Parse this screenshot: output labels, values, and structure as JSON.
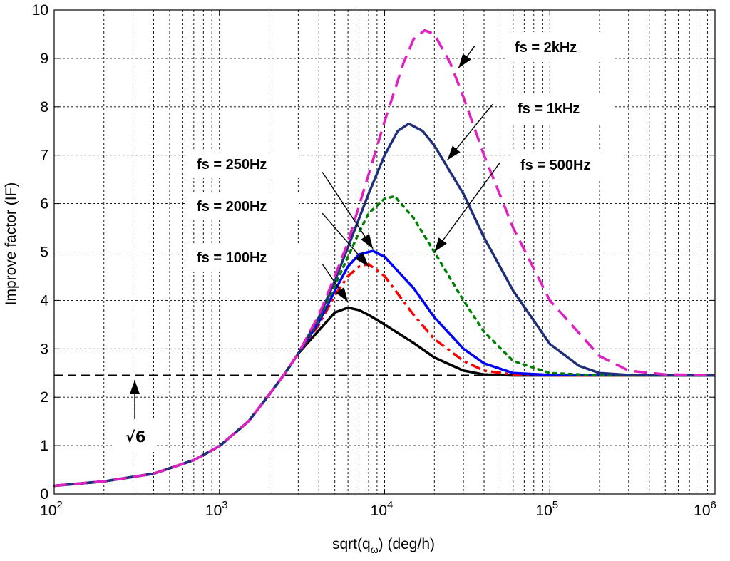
{
  "chart_data": {
    "type": "line",
    "x_scale": "log",
    "xlabel_main": "sqrt(q",
    "xlabel_sub": "ω",
    "xlabel_tail": ") (deg/h)",
    "ylabel": "Improve factor (IF)",
    "xlim": [
      100,
      1000000
    ],
    "ylim": [
      0,
      10
    ],
    "grid": true,
    "x_ticks": [
      {
        "value": 100,
        "base": "10",
        "exp": "2"
      },
      {
        "value": 1000,
        "base": "10",
        "exp": "3"
      },
      {
        "value": 10000,
        "base": "10",
        "exp": "4"
      },
      {
        "value": 100000,
        "base": "10",
        "exp": "5"
      },
      {
        "value": 1000000,
        "base": "10",
        "exp": "6"
      }
    ],
    "y_ticks": [
      0,
      1,
      2,
      3,
      4,
      5,
      6,
      7,
      8,
      9,
      10
    ],
    "reference_line": {
      "value": 2.449,
      "style": "dashed",
      "color": "#000000"
    },
    "sqrt6_annotation": {
      "label": "√6",
      "arrow_x": 316
    },
    "series": [
      {
        "name": "fs = 100Hz",
        "color": "#000000",
        "dash": "solid",
        "points": [
          [
            100,
            0.17
          ],
          [
            200,
            0.26
          ],
          [
            400,
            0.42
          ],
          [
            700,
            0.7
          ],
          [
            1000,
            0.99
          ],
          [
            1500,
            1.5
          ],
          [
            2000,
            2.05
          ],
          [
            2500,
            2.5
          ],
          [
            3000,
            2.9
          ],
          [
            4000,
            3.38
          ],
          [
            5000,
            3.75
          ],
          [
            6000,
            3.85
          ],
          [
            7000,
            3.8
          ],
          [
            8000,
            3.7
          ],
          [
            10000,
            3.5
          ],
          [
            15000,
            3.12
          ],
          [
            20000,
            2.82
          ],
          [
            30000,
            2.55
          ],
          [
            40000,
            2.47
          ],
          [
            60000,
            2.45
          ],
          [
            100000,
            2.45
          ],
          [
            1000000,
            2.45
          ]
        ]
      },
      {
        "name": "fs = 200Hz",
        "color": "#ff0000",
        "dash": "dashdot",
        "points": [
          [
            100,
            0.17
          ],
          [
            200,
            0.26
          ],
          [
            400,
            0.42
          ],
          [
            700,
            0.7
          ],
          [
            1000,
            0.99
          ],
          [
            1500,
            1.5
          ],
          [
            2000,
            2.05
          ],
          [
            2500,
            2.5
          ],
          [
            3000,
            2.9
          ],
          [
            4000,
            3.5
          ],
          [
            5000,
            4.1
          ],
          [
            6000,
            4.5
          ],
          [
            7000,
            4.7
          ],
          [
            8000,
            4.75
          ],
          [
            10000,
            4.5
          ],
          [
            15000,
            3.7
          ],
          [
            20000,
            3.2
          ],
          [
            30000,
            2.75
          ],
          [
            40000,
            2.55
          ],
          [
            60000,
            2.47
          ],
          [
            100000,
            2.45
          ],
          [
            1000000,
            2.45
          ]
        ]
      },
      {
        "name": "fs = 250Hz",
        "color": "#0000ff",
        "dash": "solid",
        "points": [
          [
            100,
            0.17
          ],
          [
            200,
            0.26
          ],
          [
            400,
            0.42
          ],
          [
            700,
            0.7
          ],
          [
            1000,
            0.99
          ],
          [
            1500,
            1.5
          ],
          [
            2000,
            2.05
          ],
          [
            2500,
            2.5
          ],
          [
            3000,
            2.9
          ],
          [
            4000,
            3.55
          ],
          [
            5000,
            4.2
          ],
          [
            6000,
            4.7
          ],
          [
            7000,
            4.95
          ],
          [
            8500,
            5.02
          ],
          [
            10000,
            4.9
          ],
          [
            15000,
            4.25
          ],
          [
            20000,
            3.65
          ],
          [
            30000,
            3.0
          ],
          [
            40000,
            2.7
          ],
          [
            60000,
            2.5
          ],
          [
            100000,
            2.46
          ],
          [
            1000000,
            2.45
          ]
        ]
      },
      {
        "name": "fs = 500Hz",
        "color": "#008000",
        "dash": "dotted",
        "points": [
          [
            100,
            0.17
          ],
          [
            200,
            0.26
          ],
          [
            400,
            0.42
          ],
          [
            700,
            0.7
          ],
          [
            1000,
            0.99
          ],
          [
            1500,
            1.5
          ],
          [
            2000,
            2.05
          ],
          [
            2500,
            2.5
          ],
          [
            3000,
            2.9
          ],
          [
            4000,
            3.6
          ],
          [
            5000,
            4.3
          ],
          [
            6000,
            4.9
          ],
          [
            7000,
            5.4
          ],
          [
            8000,
            5.8
          ],
          [
            10000,
            6.1
          ],
          [
            11500,
            6.15
          ],
          [
            15000,
            5.7
          ],
          [
            20000,
            5.0
          ],
          [
            30000,
            4.0
          ],
          [
            40000,
            3.35
          ],
          [
            60000,
            2.75
          ],
          [
            100000,
            2.5
          ],
          [
            200000,
            2.45
          ],
          [
            1000000,
            2.45
          ]
        ]
      },
      {
        "name": "fs = 1kHz",
        "color": "#1f2f7a",
        "dash": "solid",
        "points": [
          [
            100,
            0.17
          ],
          [
            200,
            0.26
          ],
          [
            400,
            0.42
          ],
          [
            700,
            0.7
          ],
          [
            1000,
            0.99
          ],
          [
            1500,
            1.5
          ],
          [
            2000,
            2.05
          ],
          [
            2500,
            2.5
          ],
          [
            3000,
            2.9
          ],
          [
            4000,
            3.65
          ],
          [
            5000,
            4.4
          ],
          [
            6000,
            5.1
          ],
          [
            8000,
            6.2
          ],
          [
            10000,
            7.0
          ],
          [
            12000,
            7.5
          ],
          [
            14000,
            7.65
          ],
          [
            17000,
            7.5
          ],
          [
            20000,
            7.2
          ],
          [
            30000,
            6.2
          ],
          [
            40000,
            5.3
          ],
          [
            60000,
            4.2
          ],
          [
            100000,
            3.1
          ],
          [
            150000,
            2.65
          ],
          [
            200000,
            2.5
          ],
          [
            300000,
            2.46
          ],
          [
            1000000,
            2.45
          ]
        ]
      },
      {
        "name": "fs = 2kHz",
        "color": "#e020c0",
        "dash": "dashed",
        "points": [
          [
            100,
            0.17
          ],
          [
            200,
            0.26
          ],
          [
            400,
            0.42
          ],
          [
            700,
            0.7
          ],
          [
            1000,
            0.99
          ],
          [
            1500,
            1.5
          ],
          [
            2000,
            2.05
          ],
          [
            2500,
            2.5
          ],
          [
            3000,
            2.9
          ],
          [
            4000,
            3.7
          ],
          [
            5000,
            4.5
          ],
          [
            6000,
            5.2
          ],
          [
            8000,
            6.6
          ],
          [
            10000,
            7.7
          ],
          [
            13000,
            8.9
          ],
          [
            15000,
            9.4
          ],
          [
            17500,
            9.58
          ],
          [
            20000,
            9.5
          ],
          [
            25000,
            8.9
          ],
          [
            30000,
            8.2
          ],
          [
            40000,
            7.0
          ],
          [
            60000,
            5.5
          ],
          [
            100000,
            4.0
          ],
          [
            200000,
            2.85
          ],
          [
            300000,
            2.55
          ],
          [
            500000,
            2.47
          ],
          [
            1000000,
            2.46
          ]
        ]
      }
    ],
    "annotations": [
      {
        "label": "fs = 2kHz",
        "text_x": 10,
        "text_y": 10,
        "arrow": [
          [
            35000,
            9.25
          ],
          [
            28000,
            8.8
          ]
        ]
      },
      {
        "label": "fs = 1kHz",
        "text_x": 10,
        "text_y": 10,
        "arrow": [
          [
            45000,
            8.05
          ],
          [
            24000,
            6.9
          ]
        ]
      },
      {
        "label": "fs = 500Hz",
        "text_x": 10,
        "text_y": 10,
        "arrow": [
          [
            50000,
            6.85
          ],
          [
            20000,
            5.0
          ]
        ]
      },
      {
        "label": "fs = 250Hz",
        "text_x": 10,
        "text_y": 10,
        "arrow": [
          [
            4200,
            6.65
          ],
          [
            8500,
            5.07
          ]
        ]
      },
      {
        "label": "fs = 200Hz",
        "text_x": 10,
        "text_y": 10,
        "arrow": [
          [
            4200,
            5.8
          ],
          [
            8000,
            4.7
          ]
        ]
      },
      {
        "label": "fs = 100Hz",
        "text_x": 10,
        "text_y": 10,
        "arrow": [
          [
            4200,
            4.75
          ],
          [
            6000,
            3.97
          ]
        ]
      }
    ]
  }
}
